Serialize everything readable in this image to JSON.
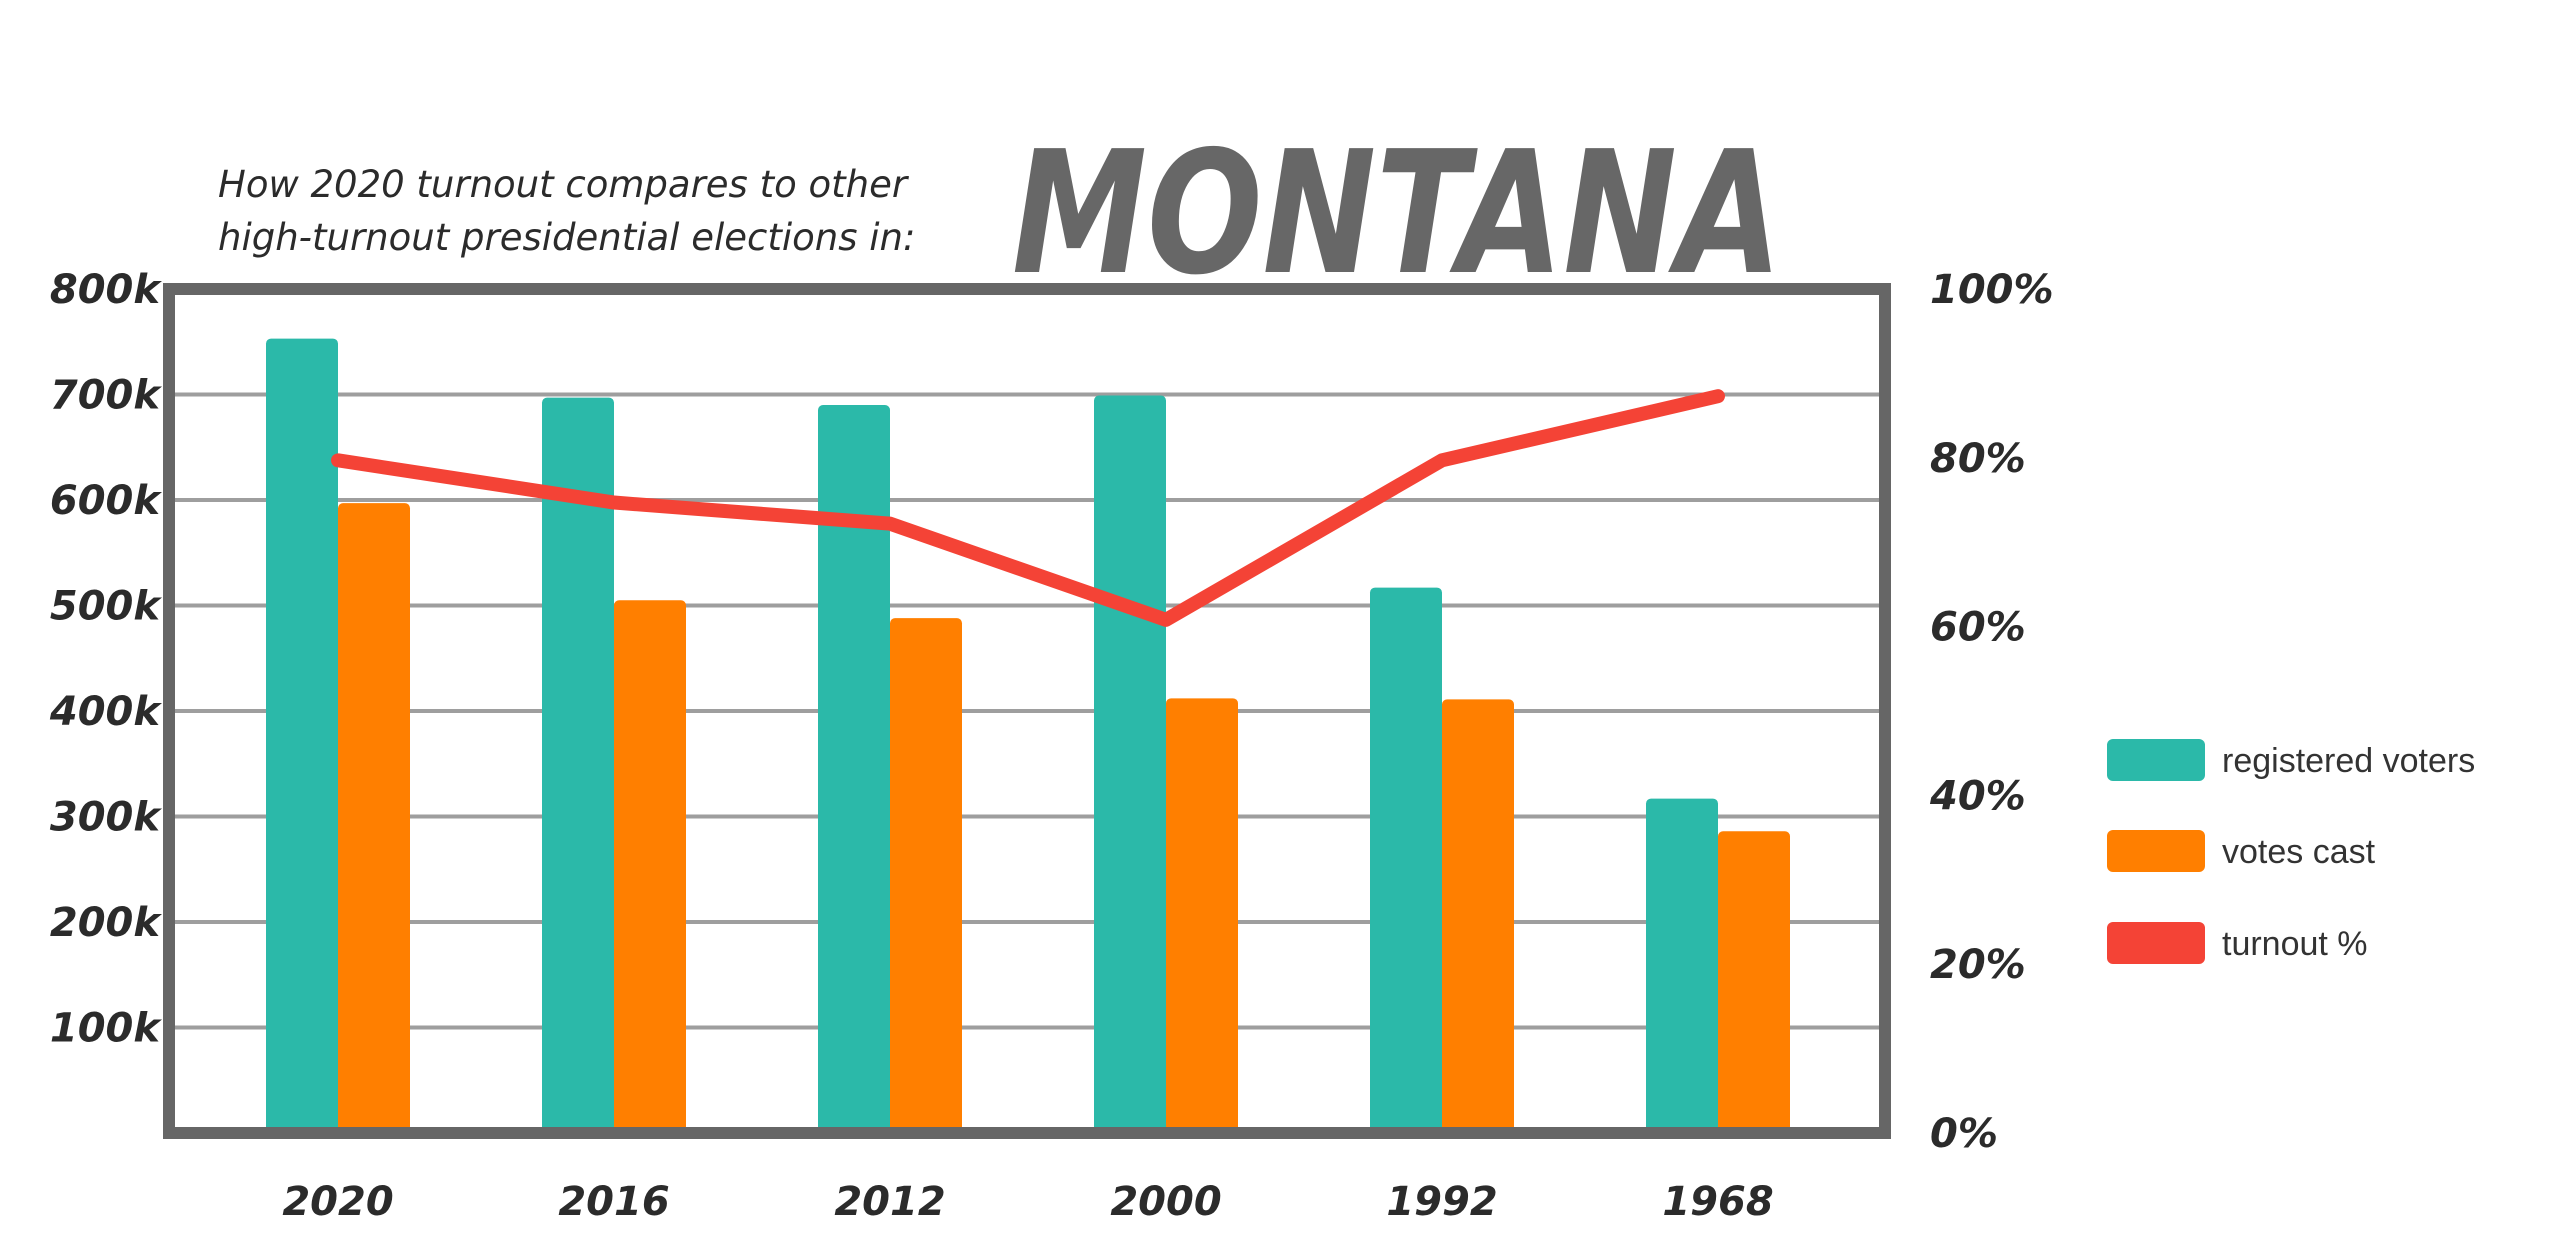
{
  "chart_data": {
    "type": "bar",
    "title": "MONTANA",
    "subtitle_lines": [
      "How 2020 turnout compares to other",
      "high-turnout presidential elections in:"
    ],
    "categories": [
      "2020",
      "2016",
      "2012",
      "2000",
      "1992",
      "1968"
    ],
    "series": [
      {
        "name": "registered voters",
        "type": "bar",
        "axis": "left",
        "color": "#2bb9a9",
        "values": [
          753000,
          697000,
          690000,
          699000,
          517000,
          317000
        ]
      },
      {
        "name": "votes cast",
        "type": "bar",
        "axis": "left",
        "color": "#ff7f00",
        "values": [
          597000,
          505000,
          488000,
          412000,
          411000,
          286000
        ]
      },
      {
        "name": "turnout %",
        "type": "line",
        "axis": "right",
        "color": "#f44336",
        "values": [
          79.7,
          74.7,
          72.2,
          60.8,
          79.7,
          87.3
        ]
      }
    ],
    "left_axis": {
      "ylim": [
        0,
        800000
      ],
      "ticks": [
        100000,
        200000,
        300000,
        400000,
        500000,
        600000,
        700000,
        800000
      ],
      "tick_labels": [
        "100k",
        "200k",
        "300k",
        "400k",
        "500k",
        "600k",
        "700k",
        "800k"
      ]
    },
    "right_axis": {
      "ylim": [
        0,
        100
      ],
      "ticks": [
        0,
        20,
        40,
        60,
        80,
        100
      ],
      "tick_labels": [
        "0%",
        "20%",
        "40%",
        "60%",
        "80%",
        "100%"
      ]
    },
    "grid": true,
    "legend_placement": "right",
    "frame_color": "#666666",
    "grid_color": "#9e9e9e"
  }
}
